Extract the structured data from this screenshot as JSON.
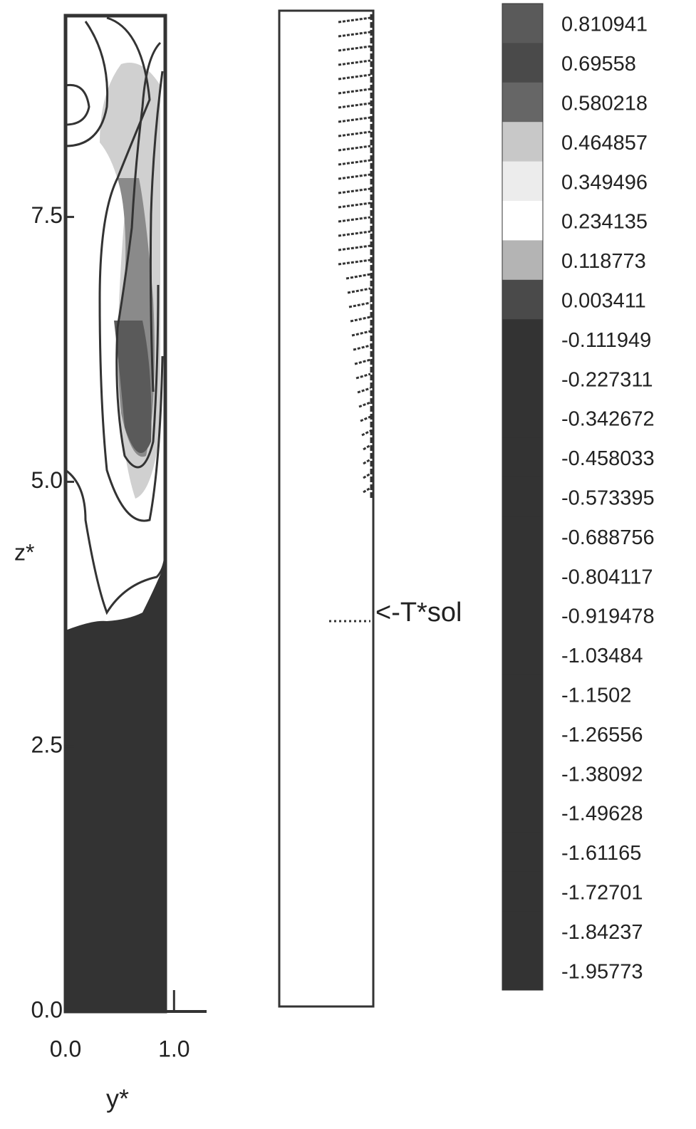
{
  "chart_data": {
    "type": "contour",
    "x_label": "y*",
    "y_label": "z*",
    "xlim": [
      0,
      1.3
    ],
    "ylim": [
      0,
      9.4
    ],
    "xticks": [
      {
        "value": 0,
        "label": "0.0"
      },
      {
        "value": 1,
        "label": "1.0"
      }
    ],
    "yticks": [
      {
        "value": 0,
        "label": "0.0"
      },
      2.5,
      {
        "value": 5,
        "label": "5.0"
      },
      7.5
    ],
    "annotation": "<-T*sol",
    "levels": [
      0.810941,
      0.69558,
      0.580218,
      0.464857,
      0.349496,
      0.234135,
      0.118773,
      0.003411,
      -0.111949,
      -0.227311,
      -0.342672,
      -0.458033,
      -0.573395,
      -0.688756,
      -0.804117,
      -0.919478,
      -1.03484,
      -1.1502,
      -1.26556,
      -1.38092,
      -1.49628,
      -1.61165,
      -1.72701,
      -1.84237,
      -1.95773
    ],
    "level_colors": [
      "#5a5a5a",
      "#4a4a4a",
      "#666666",
      "#c8c8c8",
      "#ececec",
      "#ffffff",
      "#b4b4b4",
      "#4a4a4a",
      "#333333",
      "#333333",
      "#333333",
      "#333333",
      "#333333",
      "#333333",
      "#333333",
      "#333333",
      "#333333",
      "#333333",
      "#333333",
      "#333333",
      "#333333",
      "#333333",
      "#333333",
      "#333333",
      "#333333"
    ]
  }
}
